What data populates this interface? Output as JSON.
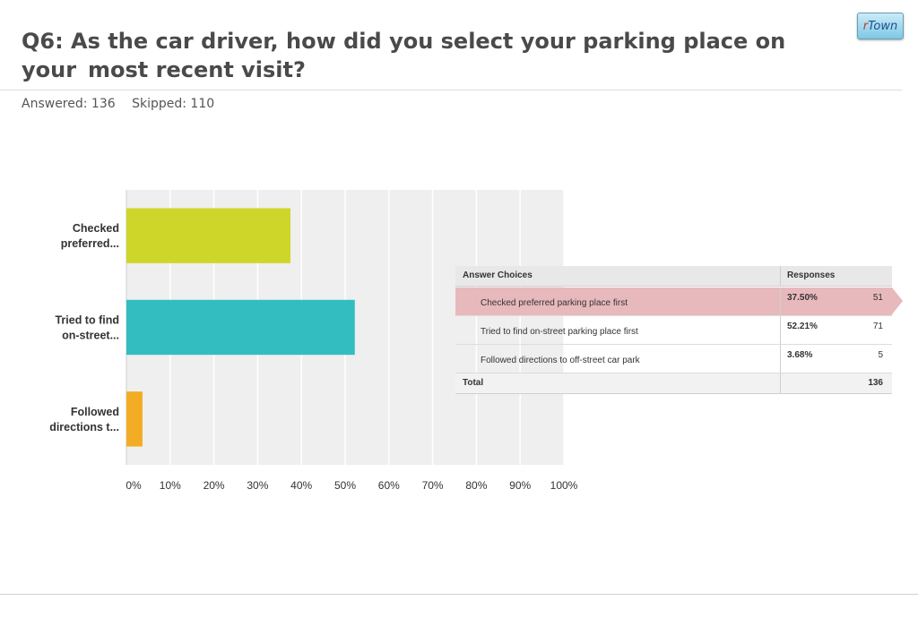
{
  "header": {
    "title_line1": "Q6: As the car driver, how did you select your parking place on your",
    "title_line2": "most recent visit?",
    "answered": "Answered: 136",
    "skipped": "Skipped: 110",
    "logo_r": "r",
    "logo_rest": "Town"
  },
  "chart_data": {
    "type": "bar",
    "orientation": "horizontal",
    "categories": [
      "Checked preferred...",
      "Tried to find on-street...",
      "Followed directions t..."
    ],
    "category_lines": [
      [
        "Checked",
        "preferred..."
      ],
      [
        "Tried to find",
        "on-street..."
      ],
      [
        "Followed",
        "directions t..."
      ]
    ],
    "values": [
      37.5,
      52.21,
      3.68
    ],
    "colors": [
      "#cfd62a",
      "#33bdc1",
      "#f3ad24"
    ],
    "xlim": [
      0,
      100
    ],
    "x_ticks": [
      "0%",
      "10%",
      "20%",
      "30%",
      "40%",
      "50%",
      "60%",
      "70%",
      "80%",
      "90%",
      "100%"
    ],
    "grid": true
  },
  "table": {
    "headers": [
      "Answer Choices",
      "Responses"
    ],
    "rows": [
      {
        "choice": "Checked preferred parking place first",
        "percent": "37.50%",
        "count": "51",
        "highlight": true
      },
      {
        "choice": "Tried to find on-street parking place first",
        "percent": "52.21%",
        "count": "71",
        "highlight": false
      },
      {
        "choice": "Followed directions to off-street car park",
        "percent": "3.68%",
        "count": "5",
        "highlight": false
      }
    ],
    "total_label": "Total",
    "total_value": "136",
    "highlight_color": "#e8b9bc"
  }
}
